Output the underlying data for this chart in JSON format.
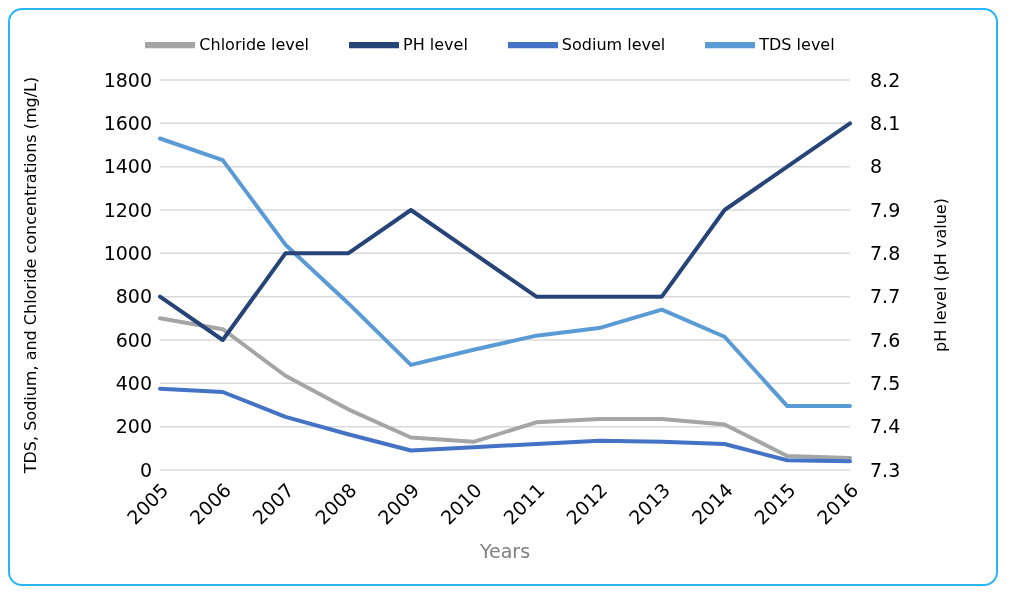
{
  "chart_data": {
    "type": "line",
    "xlabel": "Years",
    "ylabel": "TDS, Sodium, and Chloride concentrations (mg/L)",
    "y2label": "pH  level (pH value)",
    "categories": [
      "2005",
      "2006",
      "2007",
      "2008",
      "2009",
      "2010",
      "2011",
      "2012",
      "2013",
      "2014",
      "2015",
      "2016"
    ],
    "series": [
      {
        "name": "Chloride level",
        "color": "#a5a5a5",
        "values": [
          700,
          650,
          435,
          280,
          150,
          130,
          220,
          235,
          235,
          210,
          65,
          55
        ]
      },
      {
        "name": "TDS level",
        "color": "#5b9bd5",
        "values": [
          1530,
          1430,
          1040,
          770,
          485,
          555,
          620,
          655,
          740,
          615,
          295,
          295
        ]
      },
      {
        "name": "Sodium level",
        "color": "#4472c4",
        "values": [
          375,
          360,
          245,
          165,
          90,
          105,
          120,
          135,
          130,
          120,
          45,
          40
        ]
      },
      {
        "name": "PH level",
        "color": "#264478",
        "axis": "y2",
        "values": [
          7.7,
          7.6,
          7.8,
          7.8,
          7.9,
          7.8,
          7.7,
          7.7,
          7.7,
          7.9,
          8.0,
          8.1
        ]
      }
    ],
    "ylim": [
      0,
      1800
    ],
    "yticks": [
      0,
      200,
      400,
      600,
      800,
      1000,
      1200,
      1400,
      1600,
      1800
    ],
    "y2lim": [
      7.3,
      8.2
    ],
    "y2ticks": [
      7.3,
      7.4,
      7.5,
      7.6,
      7.7,
      7.8,
      7.9,
      8,
      8.1,
      8.2
    ],
    "grid": "y",
    "legend": "top",
    "marker": "none",
    "line_style": "solid"
  }
}
